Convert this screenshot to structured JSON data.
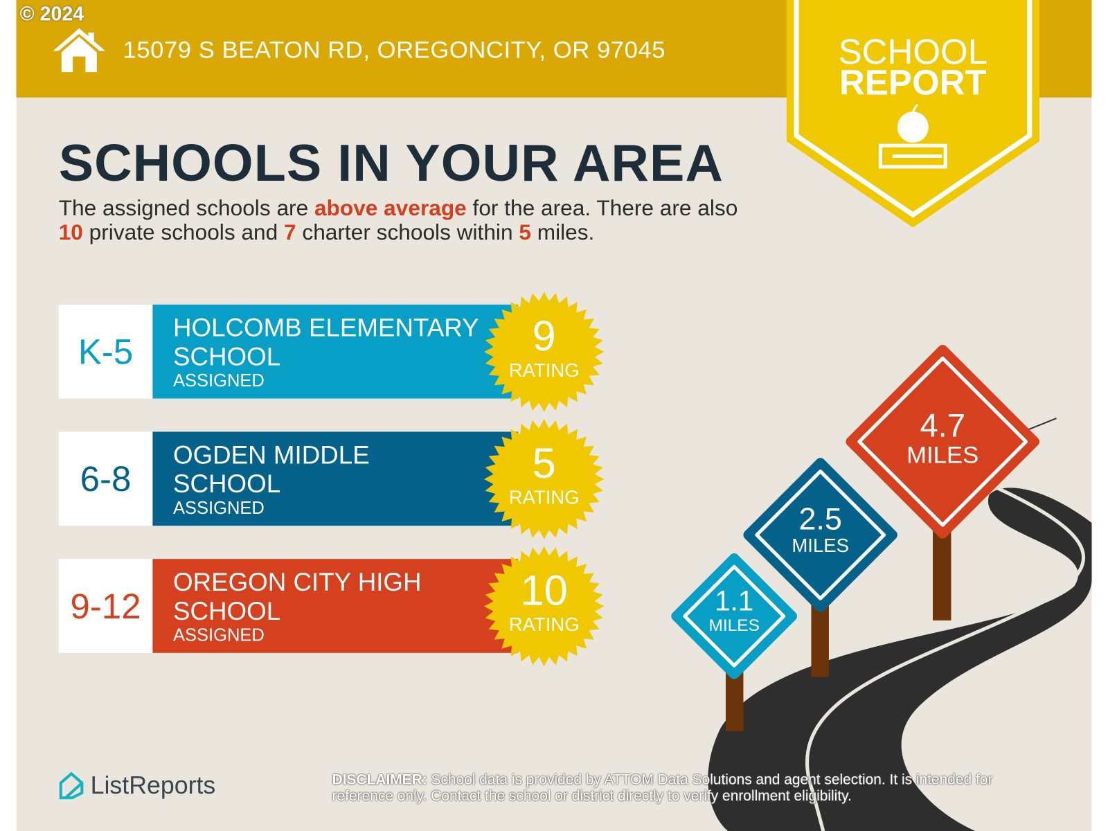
{
  "copyright": "© 2024",
  "header": {
    "address": "15079 S BEATON RD, OREGONCITY, OR 97045",
    "badge_line1": "SCHOOL",
    "badge_line2": "REPORT"
  },
  "title": "SCHOOLS IN YOUR AREA",
  "intro": {
    "p1": "The assigned schools are ",
    "highlight": "above average",
    "p2": " for the area. There are also ",
    "private_count": "10",
    "p3": " private schools and ",
    "charter_count": "7",
    "p4": " charter schools within ",
    "miles": "5",
    "p5": " miles."
  },
  "schools": [
    {
      "grade": "K-5",
      "name_line1": "HOLCOMB ELEMENTARY",
      "name_line2": "SCHOOL",
      "status": "ASSIGNED",
      "rating": "9",
      "rating_label": "RATING",
      "color": "#079fc6",
      "grade_color": "#079fc6"
    },
    {
      "grade": "6-8",
      "name_line1": "OGDEN MIDDLE",
      "name_line2": "SCHOOL",
      "status": "ASSIGNED",
      "rating": "5",
      "rating_label": "RATING",
      "color": "#04628a",
      "grade_color": "#04628a"
    },
    {
      "grade": "9-12",
      "name_line1": "OREGON CITY HIGH",
      "name_line2": "SCHOOL",
      "status": "ASSIGNED",
      "rating": "10",
      "rating_label": "RATING",
      "color": "#d5401e",
      "grade_color": "#d5401e"
    }
  ],
  "signs": [
    {
      "value": "1.1",
      "unit": "MILES",
      "color": "#079fc6"
    },
    {
      "value": "2.5",
      "unit": "MILES",
      "color": "#04628a"
    },
    {
      "value": "4.7",
      "unit": "MILES",
      "color": "#d5401e"
    }
  ],
  "footer": {
    "logo": "ListReports",
    "disclaimer_label": "DISCLAIMER:",
    "disclaimer": " School data is provided by ATTOM Data Solutions and agent selection. It is intended for reference only. Contact the school or district directly to verify enrollment eligibility."
  }
}
